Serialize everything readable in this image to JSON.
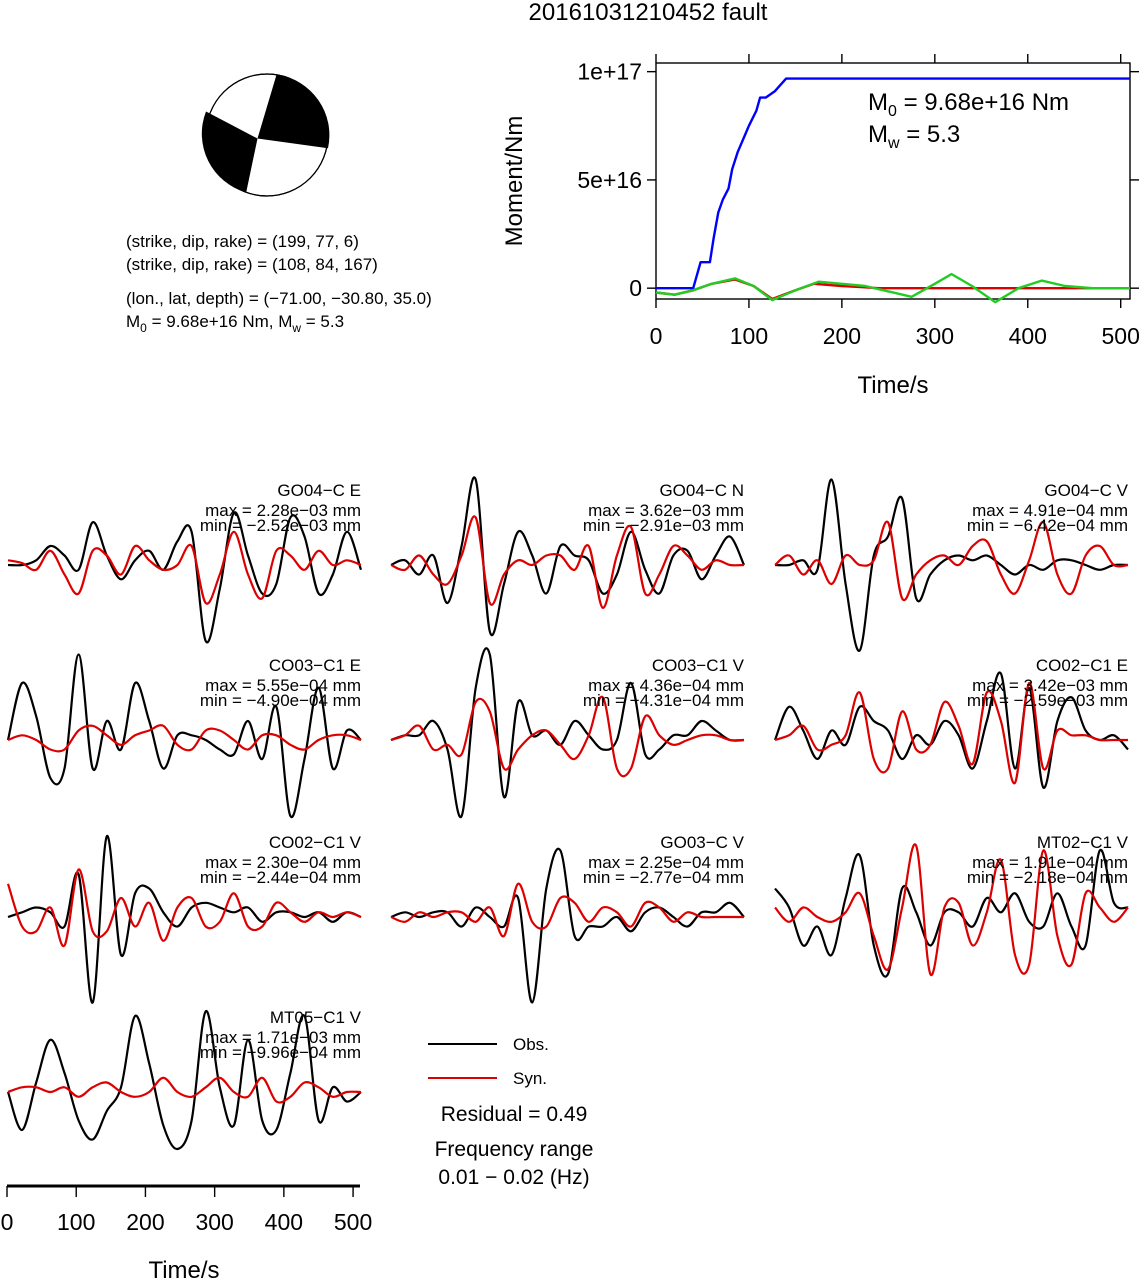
{
  "title": "20161031210452 fault",
  "mechanism": {
    "line1": "(strike, dip, rake) = (199, 77, 6)",
    "line2": "(strike, dip, rake) = (108, 84, 167)",
    "line3": "(lon., lat, depth) = (−71.00, −30.80, 35.0)",
    "m0_prefix": "M",
    "m0_sub": "0",
    "m0_rest": " = 9.68e+16 Nm, M",
    "mw_sub": "w",
    "mw_rest": " = 5.3"
  },
  "moment_panel": {
    "m0_label": "M",
    "m0_sub": "0",
    "m0_value": " = 9.68e+16 Nm",
    "mw_label": "M",
    "mw_sub": "w",
    "mw_value": " = 5.3",
    "y_ticks": [
      "0",
      "5e+16",
      "1e+17"
    ],
    "x_ticks": [
      "0",
      "100",
      "200",
      "300",
      "400",
      "500"
    ]
  },
  "waveform_axis": {
    "x_ticks": [
      "0",
      "100",
      "200",
      "300",
      "400",
      "500"
    ]
  },
  "legend": {
    "obs": "Obs.",
    "syn": "Syn.",
    "residual": "Residual = 0.49",
    "freq_title": "Frequency range",
    "freq_value": "0.01 − 0.02 (Hz)"
  },
  "colors": {
    "observed": "#000000",
    "synthetic": "#dd0000",
    "cumulative_moment": "#0000ff",
    "moment_rate": "#dd0000",
    "model_moment": "#22cc22"
  },
  "chart_data": [
    {
      "type": "line",
      "title": "",
      "xlabel": "Time/s",
      "ylabel": "Moment/Nm",
      "xlim": [
        0,
        510
      ],
      "ylim": [
        -5000000000000000.0,
        1.04e+17
      ],
      "series": [
        {
          "x": [
            0,
            40,
            48,
            58,
            62,
            67,
            72,
            78,
            82,
            88,
            95,
            100,
            108,
            112,
            118,
            128,
            140,
            510
          ],
          "y": [
            0,
            0,
            1.2e+16,
            1.2e+16,
            2.3e+16,
            3.5e+16,
            4.1e+16,
            4.6e+16,
            5.5e+16,
            6.3e+16,
            7e+16,
            7.5e+16,
            8.2e+16,
            8.8e+16,
            8.8e+16,
            9.1e+16,
            9.68e+16,
            9.68e+16
          ]
        },
        {
          "x": [
            0,
            20,
            40,
            60,
            85,
            105,
            125,
            150,
            175,
            200,
            225,
            250,
            275,
            300,
            318,
            340,
            365,
            390,
            415,
            440,
            470,
            510
          ],
          "y": [
            -2000000000000000.0,
            -3000000000000000.0,
            -1000000000000000.0,
            2000000000000000.0,
            4500000000000000.0,
            1000000000000000.0,
            -5500000000000000.0,
            -1000000000000000.0,
            3000000000000000.0,
            2000000000000000.0,
            1000000000000000.0,
            -1500000000000000.0,
            -4000000000000000.0,
            2000000000000000.0,
            6500000000000000.0,
            1000000000000000.0,
            -6500000000000000.0,
            0,
            3500000000000000.0,
            1000000000000000.0,
            0,
            0
          ]
        },
        {
          "x": [
            0,
            20,
            40,
            60,
            85,
            105,
            125,
            150,
            170,
            200,
            220,
            240,
            510
          ],
          "y": [
            -2000000000000000.0,
            -3000000000000000.0,
            -1000000000000000.0,
            2000000000000000.0,
            4000000000000000.0,
            1000000000000000.0,
            -5000000000000000.0,
            -1000000000000000.0,
            2000000000000000.0,
            1000000000000000.0,
            500000000000000.0,
            0,
            0
          ]
        }
      ]
    },
    {
      "type": "line",
      "xlabel": "Time/s",
      "xlim": [
        0,
        510
      ],
      "traces": [
        {
          "station": "GO04−C E",
          "max": "max = 2.28e−03 mm",
          "min": "min = −2.52e−03 mm",
          "obs": [
            0,
            0,
            0.05,
            0.2,
            0.1,
            -0.05,
            0.45,
            0.1,
            -0.15,
            0.05,
            0.15,
            -0.05,
            0.25,
            0.35,
            -0.8,
            -0.25,
            0.55,
            0.1,
            -0.3,
            -0.2,
            0.5,
            0.3,
            -0.3,
            -0.1,
            0.35,
            -0.05
          ],
          "syn": [
            0.05,
            0.02,
            -0.05,
            0.15,
            -0.1,
            -0.3,
            0.15,
            0.1,
            -0.1,
            0.2,
            0.05,
            -0.05,
            0,
            0.2,
            -0.4,
            -0.1,
            0.35,
            -0.1,
            -0.35,
            0.15,
            0.1,
            -0.05,
            0.15,
            0,
            0.05,
            0
          ]
        },
        {
          "station": "GO04−C N",
          "max": "max = 3.62e−03 mm",
          "min": "min = −2.91e−03 mm",
          "obs": [
            0,
            0.05,
            -0.1,
            0.1,
            -0.4,
            0.2,
            0.9,
            -0.7,
            -0.2,
            0.35,
            0.1,
            -0.3,
            0.2,
            0.1,
            0.05,
            -0.3,
            -0.1,
            0.35,
            -0.05,
            -0.3,
            0.1,
            0.15,
            -0.15,
            0.1,
            0.3,
            0
          ],
          "syn": [
            0,
            -0.05,
            0.1,
            -0.1,
            -0.2,
            0.1,
            0.5,
            -0.4,
            -0.1,
            0.05,
            0,
            0.1,
            0.1,
            -0.05,
            0.2,
            -0.45,
            0.1,
            0.4,
            -0.3,
            -0.1,
            0.2,
            0.1,
            -0.05,
            0.05,
            0,
            0
          ]
        },
        {
          "station": "GO04−C V",
          "max": "max = 4.91e−04 mm",
          "min": "min = −6.42e−04 mm",
          "obs": [
            0,
            0,
            0.05,
            -0.05,
            0.9,
            -0.2,
            -0.9,
            0.1,
            0.3,
            0.7,
            -0.35,
            -0.1,
            0.05,
            0.1,
            0.05,
            0.1,
            0,
            -0.1,
            0,
            -0.05,
            0.05,
            0.05,
            0,
            -0.05,
            0,
            0
          ],
          "syn": [
            0,
            0.1,
            -0.1,
            0.05,
            -0.2,
            0.1,
            0,
            0.05,
            0.45,
            -0.35,
            -0.1,
            0.05,
            0.1,
            0,
            0.2,
            0.25,
            -0.1,
            -0.3,
            0.05,
            0.45,
            -0.1,
            -0.3,
            0.1,
            0.2,
            0,
            0
          ]
        },
        {
          "station": "CO03−C1 E",
          "max": "max = 5.55e−04 mm",
          "min": "min = −4.90e−04 mm",
          "obs": [
            0,
            0.6,
            0.25,
            -0.4,
            -0.3,
            0.9,
            -0.3,
            0.2,
            -0.1,
            0.6,
            0.2,
            -0.3,
            0.05,
            0.05,
            0,
            -0.1,
            -0.15,
            0.2,
            -0.2,
            0.35,
            -0.8,
            -0.2,
            0.55,
            -0.3,
            0.1,
            0
          ],
          "syn": [
            0,
            0.05,
            0,
            -0.1,
            -0.1,
            0.1,
            0.15,
            0.05,
            -0.05,
            0.05,
            0.1,
            0.15,
            -0.05,
            -0.1,
            0.1,
            0.1,
            0,
            -0.1,
            0.05,
            0.05,
            -0.05,
            -0.1,
            0,
            0.05,
            0.05,
            0
          ]
        },
        {
          "station": "CO03−C1 V",
          "max": "max = 4.36e−04 mm",
          "min": "min = −4.31e−04 mm",
          "obs": [
            0,
            0.05,
            0.05,
            0.2,
            -0.1,
            -0.8,
            0.55,
            0.9,
            -0.6,
            0.4,
            0.05,
            0.1,
            -0.05,
            0.2,
            0.05,
            -0.1,
            0,
            0.6,
            -0.15,
            -0.1,
            0.05,
            0.05,
            0.2,
            0.1,
            0,
            0
          ],
          "syn": [
            0,
            0.05,
            0.15,
            -0.1,
            -0.05,
            -0.15,
            0.4,
            0.3,
            -0.3,
            -0.1,
            0.05,
            0.1,
            -0.05,
            -0.2,
            0.05,
            0.45,
            -0.3,
            -0.3,
            0.25,
            0.05,
            -0.05,
            0,
            0.05,
            0.05,
            0,
            0
          ]
        },
        {
          "station": "CO02−C1 E",
          "max": "max = 3.42e−03 mm",
          "min": "min = −2.59e−03 mm",
          "obs": [
            0,
            0.35,
            0.1,
            -0.2,
            0.1,
            -0.05,
            0.35,
            0.2,
            0.1,
            -0.2,
            0.05,
            -0.05,
            0.2,
            0.05,
            -0.3,
            0.2,
            0.7,
            -0.3,
            0.55,
            -0.5,
            0.2,
            0.45,
            0.1,
            0,
            0.05,
            -0.1
          ],
          "syn": [
            0,
            0.05,
            0.15,
            -0.1,
            -0.05,
            0.05,
            0.5,
            -0.2,
            -0.3,
            0.3,
            -0.1,
            -0.05,
            0.4,
            0.15,
            -0.25,
            0.5,
            0.2,
            -0.45,
            0.6,
            -0.3,
            0.1,
            0.05,
            0.05,
            0,
            0,
            0
          ]
        },
        {
          "station": "CO02−C1 V",
          "max": "max = 2.30e−04 mm",
          "min": "min = −2.44e−04 mm",
          "obs": [
            0,
            0.05,
            0.1,
            0.05,
            -0.1,
            0.45,
            -0.9,
            0.85,
            -0.4,
            0.25,
            0.3,
            0.05,
            -0.1,
            0.1,
            0.15,
            0.1,
            0.05,
            0.1,
            -0.05,
            0.05,
            0.05,
            0,
            0.05,
            -0.05,
            0.05,
            0
          ],
          "syn": [
            0.35,
            -0.1,
            -0.15,
            0.1,
            -0.3,
            0.5,
            -0.15,
            -0.15,
            0.2,
            -0.1,
            0.15,
            -0.25,
            0.1,
            0.2,
            -0.1,
            -0.05,
            0.25,
            -0.1,
            -0.1,
            0.15,
            0.05,
            -0.05,
            0.05,
            0,
            0.05,
            0
          ]
        },
        {
          "station": "GO03−C V",
          "max": "max = 2.25e−04 mm",
          "min": "min = −2.77e−04 mm",
          "obs": [
            0,
            0.05,
            0,
            0.05,
            0.05,
            -0.1,
            0.1,
            0,
            -0.1,
            0.2,
            -0.9,
            0.3,
            0.7,
            -0.2,
            -0.1,
            -0.1,
            0,
            -0.15,
            0.05,
            0.1,
            0,
            -0.1,
            0.05,
            0.05,
            0.15,
            0
          ],
          "syn": [
            0,
            -0.05,
            0.05,
            0,
            0.05,
            0.05,
            -0.05,
            0.1,
            -0.2,
            0.35,
            -0.05,
            -0.1,
            0.2,
            0.15,
            -0.05,
            0.1,
            0.05,
            -0.1,
            0.15,
            0.1,
            -0.05,
            0.05,
            0,
            0,
            0,
            0
          ]
        },
        {
          "station": "MT02−C1 V",
          "max": "max = 1.91e−04 mm",
          "min": "min = −2.18e−04 mm",
          "obs": [
            0.3,
            0.1,
            -0.3,
            -0.1,
            -0.4,
            0.2,
            0.65,
            -0.3,
            -0.6,
            0.3,
            0.05,
            -0.3,
            0.05,
            0.05,
            -0.1,
            0.2,
            0.05,
            0.25,
            -0.05,
            -0.1,
            0.25,
            -0.1,
            -0.3,
            0.7,
            0.15,
            0.1
          ],
          "syn": [
            0.1,
            -0.05,
            0.1,
            0,
            -0.05,
            0.05,
            0.25,
            -0.2,
            -0.55,
            0.1,
            0.75,
            -0.6,
            0.1,
            0.15,
            -0.3,
            0.05,
            0.6,
            -0.4,
            -0.5,
            0.7,
            -0.2,
            -0.5,
            0.25,
            0.1,
            -0.05,
            0.1
          ]
        },
        {
          "station": "MT05−C1 V",
          "max": "max = 1.71e−03 mm",
          "min": "min = −9.96e−04 mm",
          "obs": [
            0,
            -0.4,
            0.1,
            0.55,
            0.2,
            -0.3,
            -0.5,
            -0.2,
            0.05,
            0.8,
            0.3,
            -0.35,
            -0.6,
            -0.3,
            0.85,
            0.05,
            -0.35,
            0.55,
            -0.3,
            -0.4,
            0.2,
            0.8,
            -0.3,
            0.05,
            -0.1,
            0
          ],
          "syn": [
            0,
            0.05,
            0.05,
            0,
            0.05,
            -0.05,
            0.05,
            0.1,
            0,
            -0.05,
            0,
            0.15,
            0,
            -0.05,
            0.05,
            0.15,
            0,
            -0.05,
            0.15,
            -0.1,
            -0.05,
            0.1,
            0.05,
            -0.05,
            0,
            0
          ]
        }
      ]
    }
  ]
}
